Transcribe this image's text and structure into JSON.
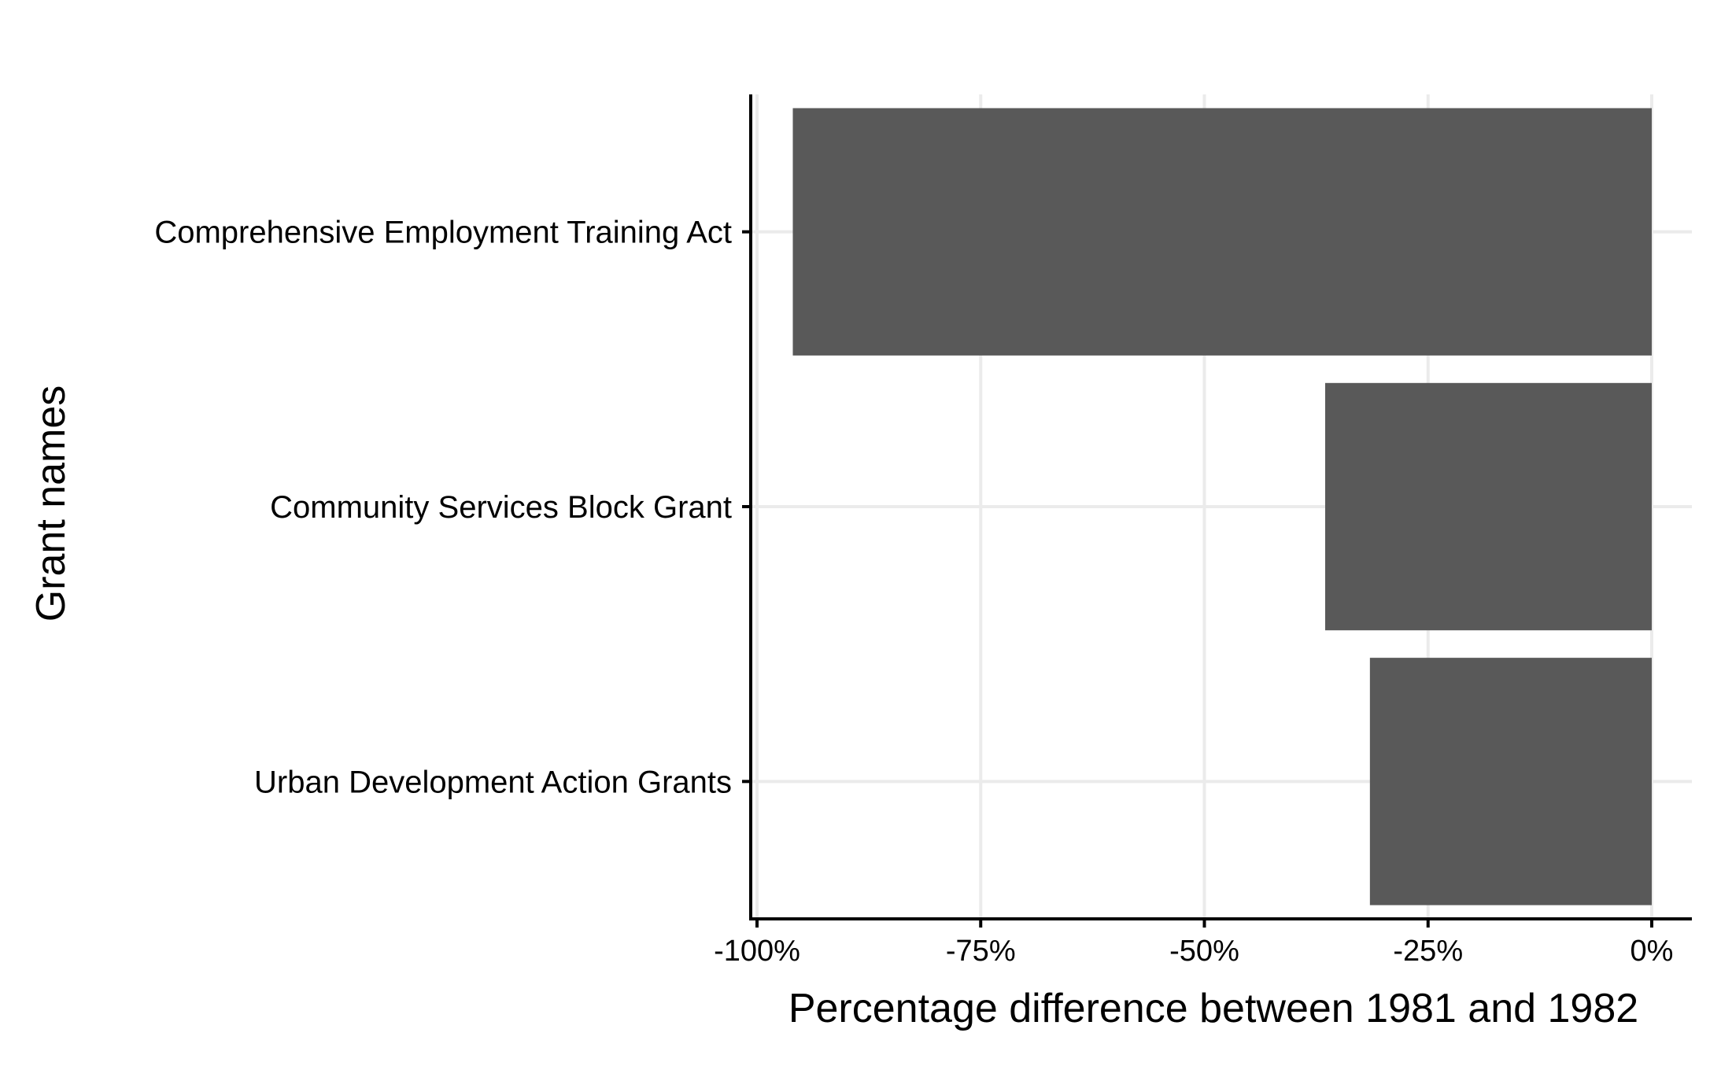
{
  "chart_data": {
    "type": "bar",
    "orientation": "horizontal",
    "categories": [
      "Comprehensive Employment Training Act",
      "Community Services Block Grant",
      "Urban Development Action Grants"
    ],
    "values": [
      -96,
      -36.5,
      -31.5
    ],
    "value_format": "percent",
    "xlabel": "Percentage difference between 1981 and 1982",
    "ylabel": "Grant names",
    "xlim": [
      -100,
      0
    ],
    "xticks": [
      -100,
      -75,
      -50,
      -25,
      0
    ],
    "xtick_labels": [
      "-100%",
      "-75%",
      "-50%",
      "-25%",
      "0%"
    ],
    "grid": true,
    "legend": "none",
    "colors": {
      "bar": "#595959",
      "grid": "#ebebeb",
      "axis": "#000000",
      "background": "#ffffff"
    }
  }
}
